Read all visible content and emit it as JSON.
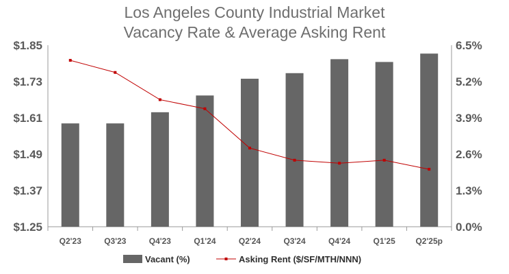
{
  "chart_data": {
    "type": "bar",
    "title": "Los Angeles County Industrial Market",
    "subtitle": "Vacancy Rate & Average Asking Rent",
    "categories": [
      "Q2'23",
      "Q3'23",
      "Q4'23",
      "Q1'24",
      "Q2'24",
      "Q3'24",
      "Q4'24",
      "Q1'25",
      "Q2'25p"
    ],
    "series": [
      {
        "name": "Vacant (%)",
        "type": "bar",
        "axis": "right",
        "color": "#666666",
        "values": [
          3.7,
          3.7,
          4.1,
          4.7,
          5.3,
          5.5,
          6.0,
          5.9,
          6.2
        ]
      },
      {
        "name": "Asking Rent ($/SF/MTH/NNN)",
        "type": "line",
        "axis": "left",
        "color": "#c00000",
        "values": [
          1.8,
          1.76,
          1.67,
          1.64,
          1.51,
          1.47,
          1.46,
          1.47,
          1.44
        ]
      }
    ],
    "y_left": {
      "range": [
        1.25,
        1.85
      ],
      "ticks": [
        "$1.85",
        "$1.73",
        "$1.61",
        "$1.49",
        "$1.37",
        "$1.25"
      ],
      "tick_values": [
        1.85,
        1.73,
        1.61,
        1.49,
        1.37,
        1.25
      ]
    },
    "y_right": {
      "range": [
        0,
        6.5
      ],
      "ticks": [
        "6.5%",
        "5.2%",
        "3.9%",
        "2.6%",
        "1.3%",
        "0.0%"
      ],
      "tick_values": [
        6.5,
        5.2,
        3.9,
        2.6,
        1.3,
        0.0
      ]
    },
    "grid": false,
    "legend_position": "bottom"
  }
}
